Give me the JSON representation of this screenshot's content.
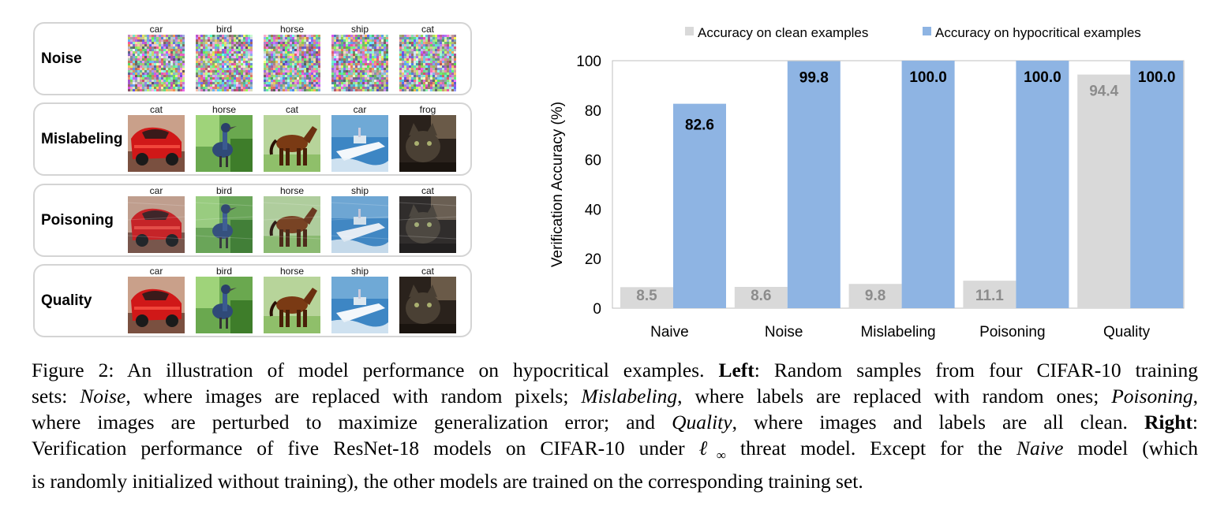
{
  "left": {
    "rows": [
      {
        "label": "Noise",
        "kind": "noise",
        "cells": [
          "car",
          "bird",
          "horse",
          "ship",
          "cat"
        ]
      },
      {
        "label": "Mislabeling",
        "kind": "mislabel",
        "cells": [
          "cat",
          "horse",
          "cat",
          "car",
          "frog"
        ]
      },
      {
        "label": "Poisoning",
        "kind": "poison",
        "cells": [
          "car",
          "bird",
          "horse",
          "ship",
          "cat"
        ]
      },
      {
        "label": "Quality",
        "kind": "quality",
        "cells": [
          "car",
          "bird",
          "horse",
          "ship",
          "cat"
        ]
      }
    ],
    "thumbnails_depict": [
      "red car",
      "bird",
      "brown horse",
      "white ship on water",
      "dark cat"
    ]
  },
  "chart_data": {
    "type": "bar",
    "categories": [
      "Naive",
      "Noise",
      "Mislabeling",
      "Poisoning",
      "Quality"
    ],
    "series": [
      {
        "name": "Accuracy on clean examples",
        "color": "#d9d9d9",
        "values": [
          8.5,
          8.6,
          9.8,
          11.1,
          94.4
        ],
        "labels": [
          "8.5",
          "8.6",
          "9.8",
          "11.1",
          "94.4"
        ]
      },
      {
        "name": "Accuracy on hypocritical examples",
        "color": "#8eb4e3",
        "values": [
          82.6,
          99.8,
          100.0,
          100.0,
          100.0
        ],
        "labels": [
          "82.6",
          "99.8",
          "100.0",
          "100.0",
          "100.0"
        ]
      }
    ],
    "ylabel": "Verification Accuracy (%)",
    "ylim": [
      0,
      100
    ],
    "yticks": [
      0,
      20,
      40,
      60,
      80,
      100
    ],
    "grid": false,
    "legend_position": "top"
  },
  "caption": {
    "lines": [
      [
        {
          "t": "Figure 2: An illustration of model performance on hypocritical examples. "
        },
        {
          "t": "Left",
          "b": true
        },
        {
          "t": ": Random samples from four CIFAR-10 training"
        }
      ],
      [
        {
          "t": "sets: "
        },
        {
          "t": "Noise",
          "i": true
        },
        {
          "t": ", where images are replaced with random pixels; "
        },
        {
          "t": "Mislabeling",
          "i": true
        },
        {
          "t": ", where labels are replaced with random ones; "
        },
        {
          "t": "Poisoning",
          "i": true
        },
        {
          "t": ","
        }
      ],
      [
        {
          "t": "where images are perturbed to maximize generalization error; and "
        },
        {
          "t": "Quality",
          "i": true
        },
        {
          "t": ", where images and labels are all clean. "
        },
        {
          "t": "Right",
          "b": true
        },
        {
          "t": ":"
        }
      ],
      [
        {
          "t": "Verification performance of five ResNet-18 models on CIFAR-10 under "
        },
        {
          "t": "ℓ",
          "i": true
        },
        {
          "t": "∞",
          "sub": true
        },
        {
          "t": " threat model. Except for the "
        },
        {
          "t": "Naive",
          "i": true
        },
        {
          "t": " model (which"
        }
      ],
      [
        {
          "t": "is randomly initialized without training), the other models are trained on the corresponding training set."
        }
      ]
    ]
  }
}
